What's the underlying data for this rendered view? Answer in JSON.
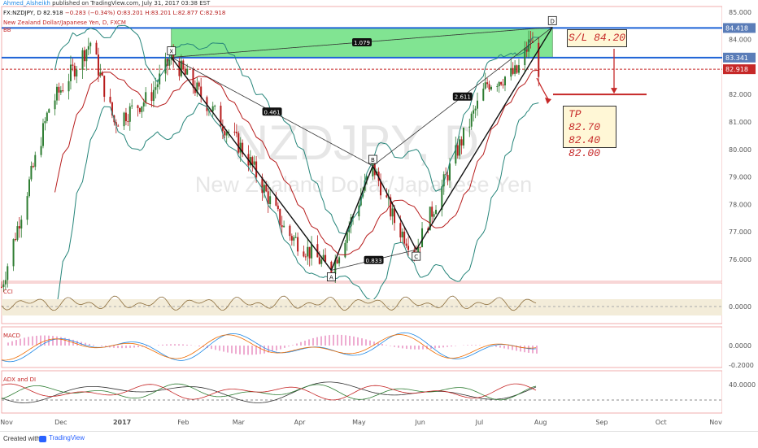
{
  "header": {
    "author": "Ahmed_Alsheikh",
    "published": "published on TradingView.com, July 31, 2017 03:38 EST",
    "symbol": "FX:NZDJPY, D",
    "last": "82.918",
    "change": "−0.283 (−0.34%)",
    "ohlc": "O:83.201 H:83.201 L:82.877 C:82.918",
    "instrument": "New Zealand Dollar/Japanese Yen, D, FXCM",
    "indicator": "BB"
  },
  "watermark": {
    "symbol": "NZDJPY, D",
    "name": "New Zealand Dollar/Japanese Yen"
  },
  "notes": {
    "stop_loss": "S/L 84.20",
    "take_profit": [
      "TP 82.70",
      "82.40",
      "82.00"
    ]
  },
  "panes": {
    "cci": "CCI",
    "macd": "MACD",
    "adx": "ADX and DI"
  },
  "footer": {
    "created_with": "Created with",
    "brand": "TradingView"
  },
  "colors": {
    "bb_band": "#26857a",
    "bb_basis": "#b71c1c",
    "candle_up": "#2e7d32",
    "candle_down": "#b71c1c",
    "pattern_fill": "#4cd964",
    "level_line": "#1e63d6",
    "current_price": "#c62828",
    "axis_label": "#5b7db8"
  },
  "chart_data": {
    "type": "candlestick",
    "x_ticks": [
      "Nov",
      "Dec",
      "2017",
      "Feb",
      "Mar",
      "Apr",
      "May",
      "Jun",
      "Jul",
      "Aug",
      "Sep",
      "Oct",
      "Nov"
    ],
    "price_ticks": [
      76.0,
      77.0,
      78.0,
      79.0,
      80.0,
      81.0,
      82.0,
      83.0,
      84.0,
      85.0
    ],
    "ylim": [
      75.2,
      85.2
    ],
    "horizontal_levels": [
      {
        "value": 84.418,
        "label": "84.418",
        "kind": "level"
      },
      {
        "value": 83.341,
        "label": "83.341",
        "kind": "level"
      },
      {
        "value": 82.918,
        "label": "82.918",
        "kind": "last"
      }
    ],
    "pattern": {
      "name": "bat",
      "points": [
        {
          "label": "X",
          "date": "2017-01-26",
          "price": 83.35
        },
        {
          "label": "A",
          "date": "2017-04-17",
          "price": 75.6
        },
        {
          "label": "B",
          "date": "2017-05-08",
          "price": 79.4
        },
        {
          "label": "C",
          "date": "2017-05-30",
          "price": 76.35
        },
        {
          "label": "D",
          "date": "2017-08-07",
          "price": 84.45
        }
      ],
      "ratios": [
        {
          "between": "XB",
          "value": "0.461"
        },
        {
          "between": "AC",
          "value": "0.833"
        },
        {
          "between": "BD",
          "value": "2.611"
        },
        {
          "between": "XD",
          "value": "1.079"
        }
      ]
    },
    "cci_ticks": [
      "0.0000"
    ],
    "macd_ticks": [
      "0.0000",
      "-0.2000"
    ],
    "adx_ticks": [
      "40.0000"
    ]
  }
}
